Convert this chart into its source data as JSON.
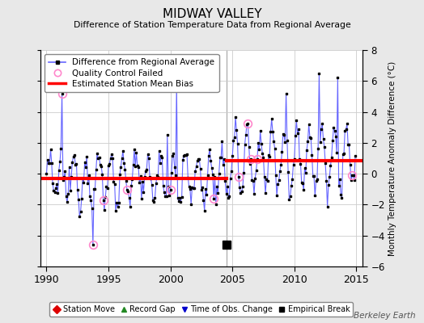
{
  "title": "MIDWAY VALLEY",
  "subtitle": "Difference of Station Temperature Data from Regional Average",
  "ylabel": "Monthly Temperature Anomaly Difference (°C)",
  "xlim": [
    1989.5,
    2015.5
  ],
  "ylim": [
    -6,
    8
  ],
  "yticks": [
    -6,
    -4,
    -2,
    0,
    2,
    4,
    6,
    8
  ],
  "xticks": [
    1990,
    1995,
    2000,
    2005,
    2010,
    2015
  ],
  "bg_color": "#e8e8e8",
  "plot_bg_color": "#ffffff",
  "line_color": "#6666ff",
  "marker_color": "#000000",
  "bias_color": "#ff0000",
  "qc_color": "#ff88cc",
  "vertical_line_x": 2004.5,
  "vertical_line_color": "#aaaaaa",
  "bias_early": -0.3,
  "bias_late": 0.85,
  "bias_break_year": 2004.5,
  "empirical_break_x": 2004.5,
  "empirical_break_y": -4.6,
  "watermark": "Berkeley Earth",
  "seed": 12345
}
